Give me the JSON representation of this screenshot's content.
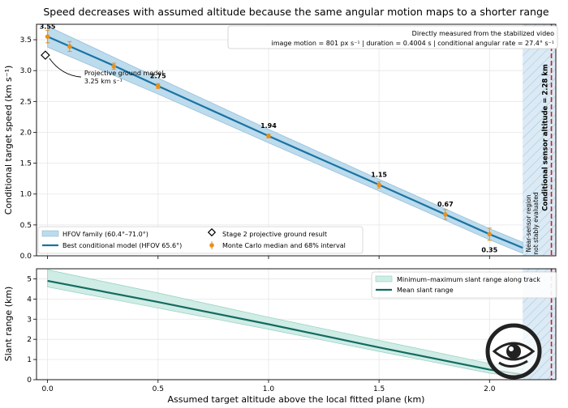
{
  "title": "Speed decreases with assumed altitude because the same angular motion maps to a shorter range",
  "colors": {
    "model_line": "#1a73a3",
    "family_band": "#bcdbec",
    "mc_points": "#e8901c",
    "conditional_line": "#c81e28",
    "near_sensor_fill": "#dbeaf4",
    "slant_line": "#136b61",
    "slant_band": "#cfece5"
  },
  "chart_data": [
    {
      "type": "line",
      "panel": "top",
      "xlim": [
        -0.05,
        2.3
      ],
      "ylim": [
        0,
        3.75
      ],
      "xticks": [
        0.0,
        0.5,
        1.0,
        1.5,
        2.0
      ],
      "yticks": [
        0.0,
        0.5,
        1.0,
        1.5,
        2.0,
        2.5,
        3.0,
        3.5
      ],
      "ylabel": "Conditional target speed (km s⁻¹)",
      "grid": true,
      "best_model": {
        "name": "Best conditional model (HFOV 65.6°)",
        "x": [
          0.0,
          0.3,
          0.5,
          1.0,
          1.5,
          2.0,
          2.15
        ],
        "y": [
          3.55,
          3.08,
          2.75,
          1.94,
          1.15,
          0.35,
          0.13
        ]
      },
      "family_band": {
        "name": "HFOV family (60.4°–71.0°)",
        "x": [
          0.0,
          0.5,
          1.0,
          1.5,
          2.0,
          2.15
        ],
        "upper": [
          3.72,
          2.88,
          2.05,
          1.24,
          0.44,
          0.22
        ],
        "lower": [
          3.38,
          2.62,
          1.83,
          1.05,
          0.26,
          0.04
        ]
      },
      "monte_carlo": {
        "name": "Monte Carlo median and 68% interval",
        "x": [
          0.0,
          0.1,
          0.3,
          0.5,
          1.0,
          1.5,
          1.8,
          2.0
        ],
        "y": [
          3.55,
          3.39,
          3.07,
          2.75,
          1.94,
          1.15,
          0.67,
          0.35
        ],
        "err": [
          0.1,
          0.08,
          0.05,
          0.04,
          0.03,
          0.05,
          0.08,
          0.1
        ]
      },
      "point_labels": [
        {
          "x": 0.0,
          "y": 3.55,
          "text": "3.55"
        },
        {
          "x": 0.5,
          "y": 2.75,
          "text": "2.75"
        },
        {
          "x": 1.0,
          "y": 1.94,
          "text": "1.94"
        },
        {
          "x": 1.5,
          "y": 1.15,
          "text": "1.15"
        },
        {
          "x": 1.8,
          "y": 0.67,
          "text": "0.67"
        },
        {
          "x": 2.0,
          "y": 0.35,
          "text": "0.35"
        }
      ],
      "projective": {
        "name": "Stage 2 projective ground result",
        "x": -0.01,
        "y": 3.25,
        "annotation_line1": "Projective ground model",
        "annotation_line2": "3.25 km s⁻¹"
      },
      "near_sensor_region": {
        "x_start": 2.15,
        "x_end": 2.3,
        "label_line1": "Near-sensor region",
        "label_line2": "not stably evaluated"
      },
      "conditional_altitude": {
        "x": 2.28,
        "label": "Conditional sensor altitude = 2.28 km"
      },
      "info_box": {
        "line1": "Directly measured from the stabilized video",
        "line2": "image motion = 801 px s⁻¹   |   duration = 0.4004 s   |   conditional angular rate = 27.4° s⁻¹"
      },
      "legend": "bottom-left"
    },
    {
      "type": "area",
      "panel": "bottom",
      "xlim": [
        -0.05,
        2.3
      ],
      "ylim": [
        0,
        5.5
      ],
      "xticks": [
        0.0,
        0.5,
        1.0,
        1.5,
        2.0
      ],
      "yticks": [
        0,
        1,
        2,
        3,
        4,
        5
      ],
      "xlabel": "Assumed target altitude above the local fitted plane (km)",
      "ylabel": "Slant range (km)",
      "grid": true,
      "mean_slant": {
        "name": "Mean slant range",
        "x": [
          0.0,
          0.5,
          1.0,
          1.5,
          2.0,
          2.15
        ],
        "y": [
          4.9,
          3.85,
          2.75,
          1.6,
          0.5,
          0.25
        ]
      },
      "minmax_band": {
        "name": "Minimum–maximum slant range along track",
        "x": [
          0.0,
          0.5,
          1.0,
          1.5,
          2.0,
          2.15
        ],
        "upper": [
          5.45,
          4.3,
          3.1,
          1.95,
          0.8,
          0.55
        ],
        "lower": [
          4.6,
          3.55,
          2.5,
          1.4,
          0.32,
          0.12
        ]
      },
      "legend": "top-right"
    }
  ],
  "labels": {
    "tick_x": [
      "0.0",
      "0.5",
      "1.0",
      "1.5",
      "2.0"
    ],
    "tick_y_top": [
      "0.0",
      "0.5",
      "1.0",
      "1.5",
      "2.0",
      "2.5",
      "3.0",
      "3.5"
    ],
    "tick_y_bottom": [
      "0",
      "1",
      "2",
      "3",
      "4",
      "5"
    ]
  },
  "logo": {
    "icon": "eye-icon"
  }
}
